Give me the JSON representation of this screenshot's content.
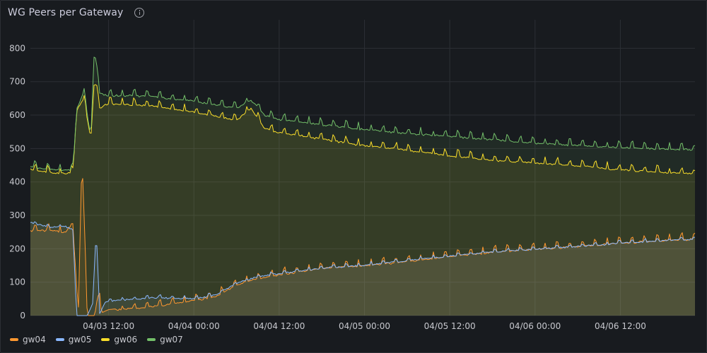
{
  "panel": {
    "title": "WG Peers per Gateway",
    "info_icon": "info-circle-icon"
  },
  "chart_data": {
    "type": "area",
    "title": "WG Peers per Gateway",
    "xlabel": "",
    "ylabel": "",
    "x_range": [
      "04/03 01:00",
      "04/06 22:30"
    ],
    "x_tick_labels": [
      "04/03 12:00",
      "04/04 00:00",
      "04/04 12:00",
      "04/05 00:00",
      "04/05 12:00",
      "04/06 00:00",
      "04/06 12:00"
    ],
    "ylim": [
      0,
      860
    ],
    "y_ticks": [
      0,
      100,
      200,
      300,
      400,
      500,
      600,
      700,
      800
    ],
    "grid": true,
    "legend_position": "bottom-left",
    "series": [
      {
        "name": "gw04",
        "color": "#ff9830",
        "points": [
          [
            "04/03 01:00",
            258
          ],
          [
            "04/03 04:00",
            258
          ],
          [
            "04/03 06:00",
            252
          ],
          [
            "04/03 06:30",
            270
          ],
          [
            "04/03 07:00",
            260
          ],
          [
            "04/03 07:45",
            15
          ],
          [
            "04/03 08:15",
            485
          ],
          [
            "04/03 09:00",
            0
          ],
          [
            "04/03 10:00",
            0
          ],
          [
            "04/03 10:45",
            70
          ],
          [
            "04/03 11:00",
            8
          ],
          [
            "04/03 12:00",
            18
          ],
          [
            "04/03 18:00",
            30
          ],
          [
            "04/04 00:00",
            48
          ],
          [
            "04/04 03:00",
            60
          ],
          [
            "04/04 06:00",
            95
          ],
          [
            "04/04 08:30",
            112
          ],
          [
            "04/04 12:00",
            125
          ],
          [
            "04/04 18:00",
            145
          ],
          [
            "04/05 00:00",
            153
          ],
          [
            "04/05 06:00",
            165
          ],
          [
            "04/05 12:00",
            180
          ],
          [
            "04/05 18:00",
            193
          ],
          [
            "04/06 00:00",
            202
          ],
          [
            "04/06 06:00",
            210
          ],
          [
            "04/06 12:00",
            220
          ],
          [
            "04/06 18:00",
            228
          ],
          [
            "04/06 22:30",
            232
          ]
        ]
      },
      {
        "name": "gw05",
        "color": "#8ab8ff",
        "points": [
          [
            "04/03 01:00",
            280
          ],
          [
            "04/03 04:00",
            265
          ],
          [
            "04/03 06:00",
            268
          ],
          [
            "04/03 06:30",
            262
          ],
          [
            "04/03 07:00",
            250
          ],
          [
            "04/03 07:30",
            0
          ],
          [
            "04/03 08:30",
            0
          ],
          [
            "04/03 09:00",
            0
          ],
          [
            "04/03 09:45",
            35
          ],
          [
            "04/03 10:15",
            255
          ],
          [
            "04/03 10:45",
            5
          ],
          [
            "04/03 11:30",
            40
          ],
          [
            "04/03 12:00",
            45
          ],
          [
            "04/03 18:00",
            55
          ],
          [
            "04/04 00:00",
            52
          ],
          [
            "04/04 03:00",
            62
          ],
          [
            "04/04 06:00",
            98
          ],
          [
            "04/04 08:30",
            115
          ],
          [
            "04/04 12:00",
            127
          ],
          [
            "04/04 18:00",
            143
          ],
          [
            "04/05 00:00",
            152
          ],
          [
            "04/05 06:00",
            166
          ],
          [
            "04/05 12:00",
            179
          ],
          [
            "04/05 18:00",
            192
          ],
          [
            "04/06 00:00",
            200
          ],
          [
            "04/06 06:00",
            208
          ],
          [
            "04/06 12:00",
            218
          ],
          [
            "04/06 18:00",
            226
          ],
          [
            "04/06 22:30",
            230
          ]
        ]
      },
      {
        "name": "gw06",
        "color": "#fade2a",
        "points": [
          [
            "04/03 01:00",
            440
          ],
          [
            "04/03 04:00",
            432
          ],
          [
            "04/03 06:00",
            428
          ],
          [
            "04/03 07:00",
            435
          ],
          [
            "04/03 07:30",
            615
          ],
          [
            "04/03 08:30",
            655
          ],
          [
            "04/03 09:30",
            530
          ],
          [
            "04/03 10:00",
            710
          ],
          [
            "04/03 10:45",
            625
          ],
          [
            "04/03 12:00",
            638
          ],
          [
            "04/03 18:00",
            632
          ],
          [
            "04/04 00:00",
            612
          ],
          [
            "04/04 06:00",
            588
          ],
          [
            "04/04 08:00",
            625
          ],
          [
            "04/04 10:00",
            562
          ],
          [
            "04/04 12:00",
            552
          ],
          [
            "04/04 18:00",
            532
          ],
          [
            "04/05 00:00",
            512
          ],
          [
            "04/05 06:00",
            498
          ],
          [
            "04/05 12:00",
            482
          ],
          [
            "04/05 18:00",
            468
          ],
          [
            "04/06 00:00",
            460
          ],
          [
            "04/06 06:00",
            452
          ],
          [
            "04/06 12:00",
            440
          ],
          [
            "04/06 18:00",
            432
          ],
          [
            "04/06 22:30",
            428
          ]
        ]
      },
      {
        "name": "gw07",
        "color": "#73bf69",
        "points": [
          [
            "04/03 01:00",
            448
          ],
          [
            "04/03 04:00",
            440
          ],
          [
            "04/03 06:00",
            438
          ],
          [
            "04/03 07:00",
            442
          ],
          [
            "04/03 07:30",
            620
          ],
          [
            "04/03 08:30",
            672
          ],
          [
            "04/03 09:30",
            540
          ],
          [
            "04/03 10:00",
            800
          ],
          [
            "04/03 10:45",
            668
          ],
          [
            "04/03 12:00",
            662
          ],
          [
            "04/03 18:00",
            660
          ],
          [
            "04/04 00:00",
            645
          ],
          [
            "04/04 06:00",
            625
          ],
          [
            "04/04 08:00",
            650
          ],
          [
            "04/04 10:00",
            602
          ],
          [
            "04/04 12:00",
            590
          ],
          [
            "04/04 18:00",
            575
          ],
          [
            "04/05 00:00",
            560
          ],
          [
            "04/05 06:00",
            548
          ],
          [
            "04/05 12:00",
            540
          ],
          [
            "04/05 18:00",
            530
          ],
          [
            "04/06 00:00",
            520
          ],
          [
            "04/06 06:00",
            513
          ],
          [
            "04/06 12:00",
            507
          ],
          [
            "04/06 18:00",
            502
          ],
          [
            "04/06 22:30",
            500
          ]
        ]
      }
    ]
  }
}
